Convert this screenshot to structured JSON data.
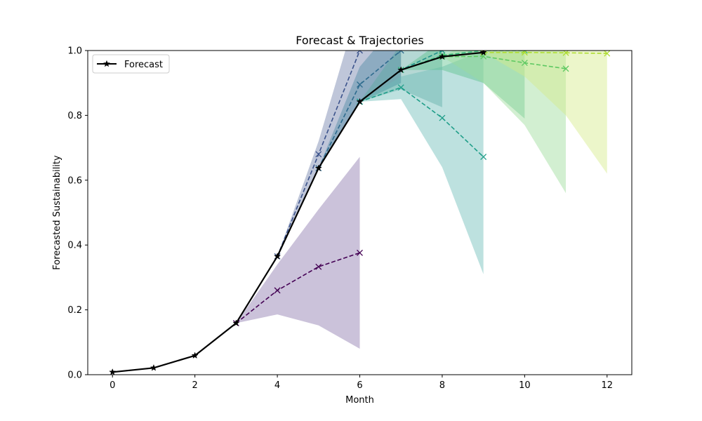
{
  "chart_data": {
    "type": "line",
    "title": "Forecast & Trajectories",
    "xlabel": "Month",
    "ylabel": "Forecasted Sustainability",
    "xlim": [
      -0.6,
      12.6
    ],
    "ylim": [
      0,
      1
    ],
    "xticks": [
      0,
      2,
      4,
      6,
      8,
      10,
      12
    ],
    "yticks": [
      0.0,
      0.2,
      0.4,
      0.6,
      0.8,
      1.0
    ],
    "xtick_labels": [
      "0",
      "2",
      "4",
      "6",
      "8",
      "10",
      "12"
    ],
    "ytick_labels": [
      "0.0",
      "0.2",
      "0.4",
      "0.6",
      "0.8",
      "1.0"
    ],
    "legend": {
      "placement": "upper-left",
      "entries": [
        "Forecast"
      ]
    },
    "grid": false,
    "series": [
      {
        "name": "Forecast",
        "color": "#000000",
        "marker": "star",
        "line_style": "solid",
        "x": [
          0,
          1,
          2,
          3,
          4,
          5,
          6,
          7,
          8,
          9
        ],
        "y": [
          0.008,
          0.021,
          0.059,
          0.159,
          0.365,
          0.637,
          0.842,
          0.94,
          0.981,
          0.994
        ]
      }
    ],
    "trajectories": [
      {
        "color": "#440154",
        "fill_color": "#8b78ad",
        "x": [
          3,
          4,
          5,
          6
        ],
        "y": [
          0.159,
          0.26,
          0.333,
          0.376
        ],
        "lower": [
          0.159,
          0.186,
          0.152,
          0.08
        ],
        "upper": [
          0.159,
          0.34,
          0.51,
          0.672
        ]
      },
      {
        "color": "#3b528b",
        "fill_color": "#7181aa",
        "x": [
          4,
          5,
          6,
          7
        ],
        "y": [
          0.365,
          0.68,
          1.0,
          1.12
        ],
        "lower": [
          0.365,
          0.64,
          0.84,
          0.9
        ],
        "upper": [
          0.365,
          0.72,
          1.15,
          1.3
        ]
      },
      {
        "color": "#2e6b8e",
        "fill_color": "#4f8aa3",
        "x": [
          5,
          6,
          7
        ],
        "y": [
          0.637,
          0.895,
          1.0
        ],
        "lower": [
          0.637,
          0.84,
          0.9
        ],
        "upper": [
          0.637,
          0.95,
          1.1
        ]
      },
      {
        "color": "#21918c",
        "fill_color": "#5aa8a0",
        "x": [
          6,
          7,
          8
        ],
        "y": [
          0.842,
          0.94,
          1.0
        ],
        "lower": [
          0.842,
          0.88,
          0.825
        ],
        "upper": [
          0.842,
          1.02,
          1.1
        ]
      },
      {
        "color": "#1f9e89",
        "fill_color": "#6dbdb8",
        "x": [
          6,
          7,
          8,
          9
        ],
        "y": [
          0.842,
          0.886,
          0.792,
          0.672
        ],
        "lower": [
          0.842,
          0.85,
          0.64,
          0.31
        ],
        "upper": [
          0.842,
          0.92,
          0.95,
          1.0
        ]
      },
      {
        "color": "#35b779",
        "fill_color": "#5ec48f",
        "x": [
          7,
          8,
          9,
          10
        ],
        "y": [
          0.94,
          0.985,
          1.0,
          1.0
        ],
        "lower": [
          0.94,
          0.94,
          0.9,
          0.79
        ],
        "upper": [
          0.94,
          1.03,
          1.05,
          1.05
        ]
      },
      {
        "color": "#5ec962",
        "fill_color": "#9cdc98",
        "x": [
          8,
          9,
          10,
          11
        ],
        "y": [
          0.981,
          0.982,
          0.962,
          0.944
        ],
        "lower": [
          0.981,
          0.9,
          0.77,
          0.56
        ],
        "upper": [
          0.981,
          1.05,
          1.08,
          1.1
        ]
      },
      {
        "color": "#addc30",
        "fill_color": "#d5ec8a",
        "x": [
          9,
          10,
          11,
          12
        ],
        "y": [
          0.994,
          0.994,
          0.993,
          0.991
        ],
        "lower": [
          0.994,
          0.92,
          0.8,
          0.62
        ],
        "upper": [
          0.994,
          1.06,
          1.1,
          1.12
        ]
      }
    ]
  }
}
